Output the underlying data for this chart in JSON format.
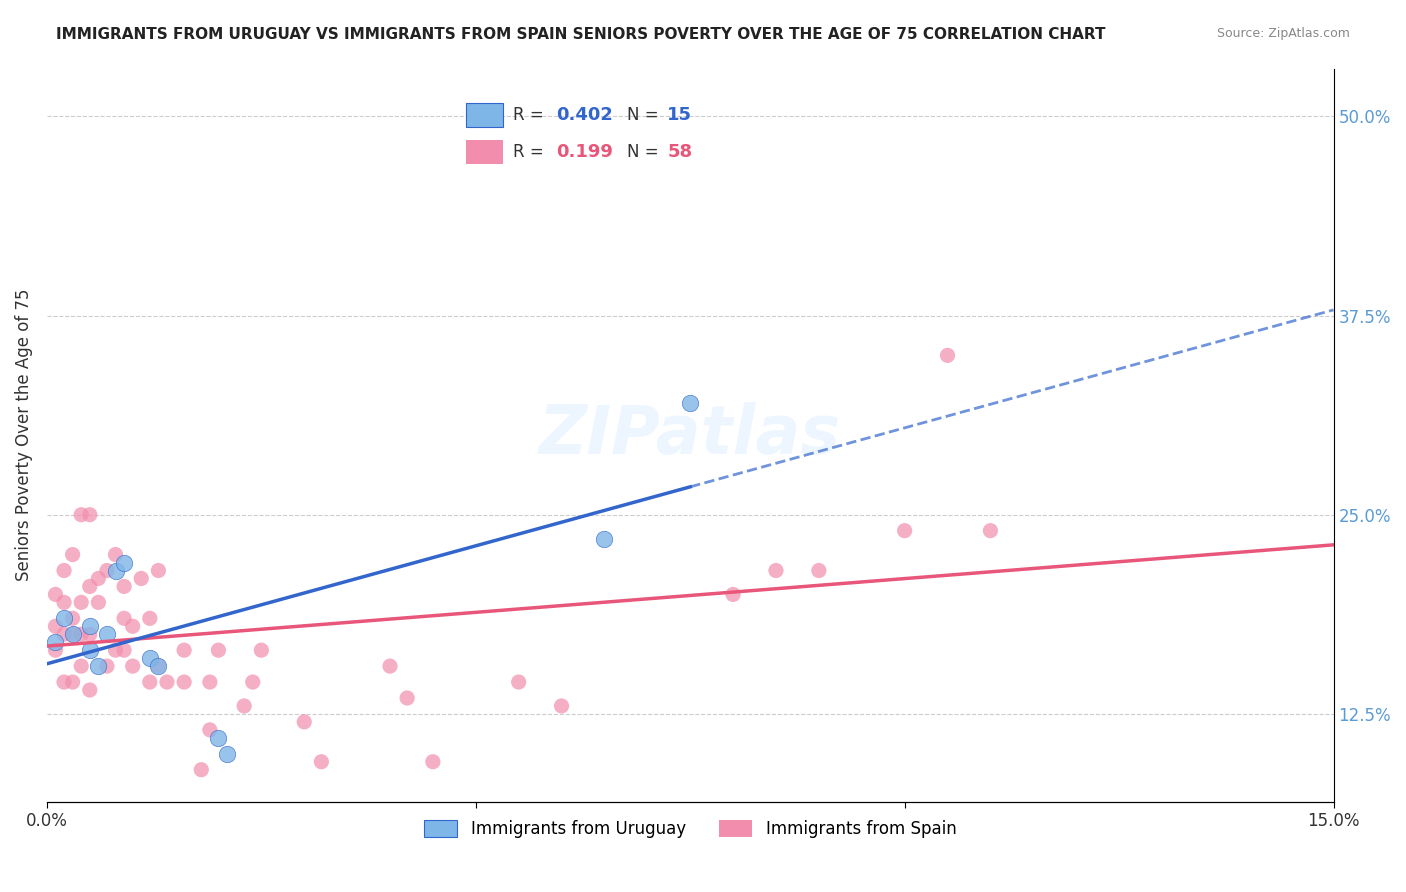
{
  "title": "IMMIGRANTS FROM URUGUAY VS IMMIGRANTS FROM SPAIN SENIORS POVERTY OVER THE AGE OF 75 CORRELATION CHART",
  "source": "Source: ZipAtlas.com",
  "xlabel_bottom": "",
  "ylabel": "Seniors Poverty Over the Age of 75",
  "legend_uruguay": "Immigrants from Uruguay",
  "legend_spain": "Immigrants from Spain",
  "R_uruguay": 0.402,
  "N_uruguay": 15,
  "R_spain": 0.199,
  "N_spain": 58,
  "xlim": [
    0.0,
    0.15
  ],
  "ylim": [
    0.07,
    0.53
  ],
  "xticks": [
    0.0,
    0.05,
    0.1,
    0.15
  ],
  "xtick_labels": [
    "0.0%",
    "",
    "",
    "15.0%"
  ],
  "yticks_right": [
    0.125,
    0.25,
    0.375,
    0.5
  ],
  "ytick_labels_right": [
    "12.5%",
    "25.0%",
    "37.5%",
    "50.0%"
  ],
  "color_uruguay": "#7EB6E8",
  "color_spain": "#F28DAD",
  "color_trendline_uruguay": "#3366CC",
  "color_trendline_spain": "#E8567A",
  "watermark": "ZIPatlas",
  "uruguay_x": [
    0.001,
    0.002,
    0.003,
    0.005,
    0.005,
    0.006,
    0.007,
    0.008,
    0.009,
    0.012,
    0.013,
    0.02,
    0.021,
    0.065,
    0.075
  ],
  "uruguay_y": [
    0.17,
    0.185,
    0.175,
    0.18,
    0.165,
    0.155,
    0.175,
    0.215,
    0.22,
    0.16,
    0.155,
    0.11,
    0.1,
    0.235,
    0.32
  ],
  "spain_x": [
    0.001,
    0.001,
    0.001,
    0.002,
    0.002,
    0.002,
    0.002,
    0.003,
    0.003,
    0.003,
    0.003,
    0.004,
    0.004,
    0.004,
    0.004,
    0.005,
    0.005,
    0.005,
    0.005,
    0.006,
    0.006,
    0.007,
    0.007,
    0.008,
    0.008,
    0.009,
    0.009,
    0.009,
    0.01,
    0.01,
    0.011,
    0.012,
    0.012,
    0.013,
    0.013,
    0.014,
    0.016,
    0.016,
    0.018,
    0.019,
    0.019,
    0.02,
    0.023,
    0.024,
    0.025,
    0.03,
    0.032,
    0.04,
    0.042,
    0.045,
    0.055,
    0.06,
    0.08,
    0.085,
    0.09,
    0.1,
    0.105,
    0.11
  ],
  "spain_y": [
    0.165,
    0.18,
    0.2,
    0.145,
    0.175,
    0.195,
    0.215,
    0.145,
    0.175,
    0.185,
    0.225,
    0.155,
    0.175,
    0.195,
    0.25,
    0.14,
    0.175,
    0.205,
    0.25,
    0.195,
    0.21,
    0.155,
    0.215,
    0.165,
    0.225,
    0.165,
    0.185,
    0.205,
    0.155,
    0.18,
    0.21,
    0.145,
    0.185,
    0.155,
    0.215,
    0.145,
    0.145,
    0.165,
    0.09,
    0.115,
    0.145,
    0.165,
    0.13,
    0.145,
    0.165,
    0.12,
    0.095,
    0.155,
    0.135,
    0.095,
    0.145,
    0.13,
    0.2,
    0.215,
    0.215,
    0.24,
    0.35,
    0.24
  ]
}
